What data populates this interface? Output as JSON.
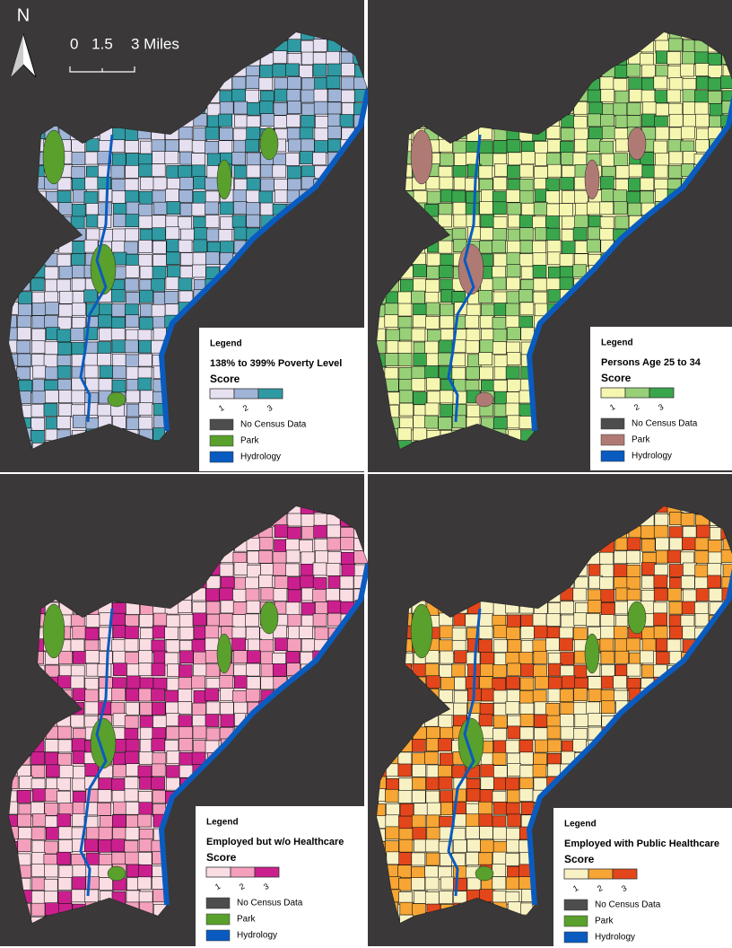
{
  "north_arrow": "N",
  "scale_bar": {
    "labels": [
      "0",
      "1.5",
      "3 Miles"
    ]
  },
  "panels": [
    {
      "legend": {
        "title": "Legend",
        "subtitle": "138% to 399%  Poverty Level",
        "score_label": "Score",
        "classes": [
          "1",
          "2",
          "3"
        ],
        "colors": [
          "#e6e0f0",
          "#9fb4d6",
          "#2f9aa3"
        ],
        "items": [
          {
            "label": "No Census Data",
            "color": "#4d4d4d"
          },
          {
            "label": "Park",
            "color": "#5aa02c"
          },
          {
            "label": "Hydrology",
            "color": "#0a5bbf"
          }
        ]
      }
    },
    {
      "legend": {
        "title": "Legend",
        "subtitle": "Persons Age 25 to 34",
        "score_label": "Score",
        "classes": [
          "1",
          "2",
          "3"
        ],
        "colors": [
          "#f5f7b0",
          "#98d078",
          "#3aa64c"
        ],
        "items": [
          {
            "label": "No Census Data",
            "color": "#4d4d4d"
          },
          {
            "label": "Park",
            "color": "#b07a74"
          },
          {
            "label": "Hydrology",
            "color": "#0a5bbf"
          }
        ]
      }
    },
    {
      "legend": {
        "title": "Legend",
        "subtitle": "Employed but w/o Healthcare",
        "score_label": "Score",
        "classes": [
          "1",
          "2",
          "3"
        ],
        "colors": [
          "#fadde3",
          "#f4a0bd",
          "#cc1f8e"
        ],
        "items": [
          {
            "label": "No Census Data",
            "color": "#4d4d4d"
          },
          {
            "label": "Park",
            "color": "#5aa02c"
          },
          {
            "label": "Hydrology",
            "color": "#0a5bbf"
          }
        ]
      }
    },
    {
      "legend": {
        "title": "Legend",
        "subtitle": "Employed with Public Healthcare",
        "score_label": "Score",
        "classes": [
          "1",
          "2",
          "3"
        ],
        "colors": [
          "#f8f1c4",
          "#f7a534",
          "#e3461a"
        ],
        "items": [
          {
            "label": "No Census Data",
            "color": "#4d4d4d"
          },
          {
            "label": "Park",
            "color": "#5aa02c"
          },
          {
            "label": "Hydrology",
            "color": "#0a5bbf"
          }
        ]
      }
    }
  ]
}
